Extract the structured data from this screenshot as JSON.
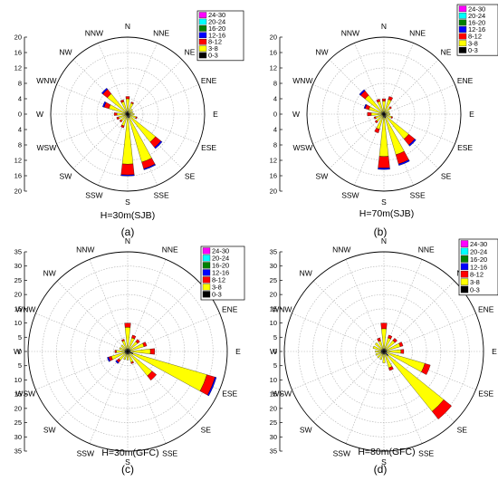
{
  "legend_bins": [
    {
      "label": "24-30",
      "color": "#ff00ff"
    },
    {
      "label": "20-24",
      "color": "#00ffff"
    },
    {
      "label": "16-20",
      "color": "#008000"
    },
    {
      "label": "12-16",
      "color": "#0000ff"
    },
    {
      "label": "8-12",
      "color": "#ff0000"
    },
    {
      "label": "3-8",
      "color": "#ffff00"
    },
    {
      "label": "0-3",
      "color": "#000000"
    }
  ],
  "directions": [
    "N",
    "NNE",
    "NE",
    "ENE",
    "E",
    "ESE",
    "SE",
    "SSE",
    "S",
    "SSW",
    "SW",
    "WSW",
    "W",
    "WNW",
    "NW",
    "NNW"
  ],
  "chart_data": [
    {
      "type": "windrose",
      "panel": "(a)",
      "title": "H=30m(SJB)",
      "rmax": 20,
      "axis_ticks": [
        "20",
        "16",
        "12",
        "8",
        "4",
        "0",
        "4",
        "8",
        "12",
        "16",
        "20"
      ],
      "stacks": [
        [
          0.8,
          3.2,
          0.6
        ],
        [
          0.5,
          2.5,
          0.3
        ],
        [
          0.4,
          1.3
        ],
        [
          0.4,
          1
        ],
        [
          0.4,
          1.3
        ],
        [
          0.5,
          1.8,
          0.3
        ],
        [
          0.8,
          8.5,
          1.8,
          0.4
        ],
        [
          1,
          12,
          1.8,
          0.3
        ],
        [
          1,
          12,
          2.8,
          0.3
        ],
        [
          0.5,
          2.7,
          0.5
        ],
        [
          0.5,
          1.8,
          0.4
        ],
        [
          0.5,
          2,
          0.5
        ],
        [
          0.5,
          2.3,
          0.7
        ],
        [
          0.6,
          4.5,
          1.3,
          0.4
        ],
        [
          0.8,
          6,
          1.5,
          0.4
        ],
        [
          0.6,
          2.8,
          0.5
        ]
      ]
    },
    {
      "type": "windrose",
      "panel": "(b)",
      "title": "H=70m(SJB)",
      "rmax": 20,
      "axis_ticks": [
        "20",
        "16",
        "12",
        "8",
        "4",
        "0",
        "4",
        "8",
        "12",
        "16",
        "20"
      ],
      "stacks": [
        [
          0.6,
          2.8,
          0.6
        ],
        [
          0.5,
          3.5,
          0.8
        ],
        [
          0.4,
          1.8,
          0.4
        ],
        [
          0.4,
          1.1
        ],
        [
          0.4,
          1.2
        ],
        [
          0.5,
          1.6,
          0.3
        ],
        [
          0.8,
          7.5,
          2,
          0.4
        ],
        [
          1,
          10,
          2.5,
          0.4
        ],
        [
          1,
          10,
          3,
          0.4
        ],
        [
          0.6,
          3.5,
          1
        ],
        [
          0.5,
          2,
          0.5
        ],
        [
          0.5,
          1.8,
          0.4
        ],
        [
          0.5,
          2.8,
          1
        ],
        [
          0.6,
          3.5,
          1,
          0.3
        ],
        [
          0.8,
          5.5,
          1.5,
          0.4
        ],
        [
          0.5,
          3,
          0.6
        ]
      ]
    },
    {
      "type": "windrose",
      "panel": "(c)",
      "title": "H=30m(GFC)",
      "rmax": 35,
      "axis_ticks": [
        "35",
        "30",
        "25",
        "20",
        "15",
        "10",
        "5",
        "0",
        "5",
        "10",
        "15",
        "20",
        "25",
        "30",
        "35"
      ],
      "stacks": [
        [
          1,
          7.5,
          1.5
        ],
        [
          1,
          4,
          1
        ],
        [
          1,
          3.5,
          1
        ],
        [
          1,
          5,
          1
        ],
        [
          1,
          7,
          1.5
        ],
        [
          2,
          27,
          3,
          0.5
        ],
        [
          1,
          10,
          2
        ],
        [
          1,
          3,
          0.5
        ],
        [
          1,
          2
        ],
        [
          1,
          2
        ],
        [
          1,
          3,
          1,
          0.5
        ],
        [
          1,
          5,
          1,
          0.5
        ],
        [
          1,
          3,
          0.5
        ],
        [
          1,
          2
        ],
        [
          1,
          2
        ],
        [
          1,
          3,
          0.5
        ]
      ]
    },
    {
      "type": "windrose",
      "panel": "(d)",
      "title": "H=80m(GFC)",
      "rmax": 35,
      "axis_ticks": [
        "35",
        "30",
        "25",
        "20",
        "15",
        "10",
        "5",
        "0",
        "5",
        "10",
        "15",
        "20",
        "25",
        "30",
        "35"
      ],
      "stacks": [
        [
          1,
          7,
          2
        ],
        [
          1,
          4,
          1
        ],
        [
          1,
          4,
          1
        ],
        [
          1,
          5,
          1
        ],
        [
          1,
          5,
          1
        ],
        [
          1,
          14,
          2
        ],
        [
          2,
          25,
          3.5
        ],
        [
          1,
          5,
          1
        ],
        [
          1,
          3
        ],
        [
          1,
          2
        ],
        [
          1,
          2
        ],
        [
          1,
          2
        ],
        [
          1,
          2
        ],
        [
          1,
          3
        ],
        [
          1,
          3
        ],
        [
          1,
          3,
          1
        ]
      ]
    }
  ]
}
